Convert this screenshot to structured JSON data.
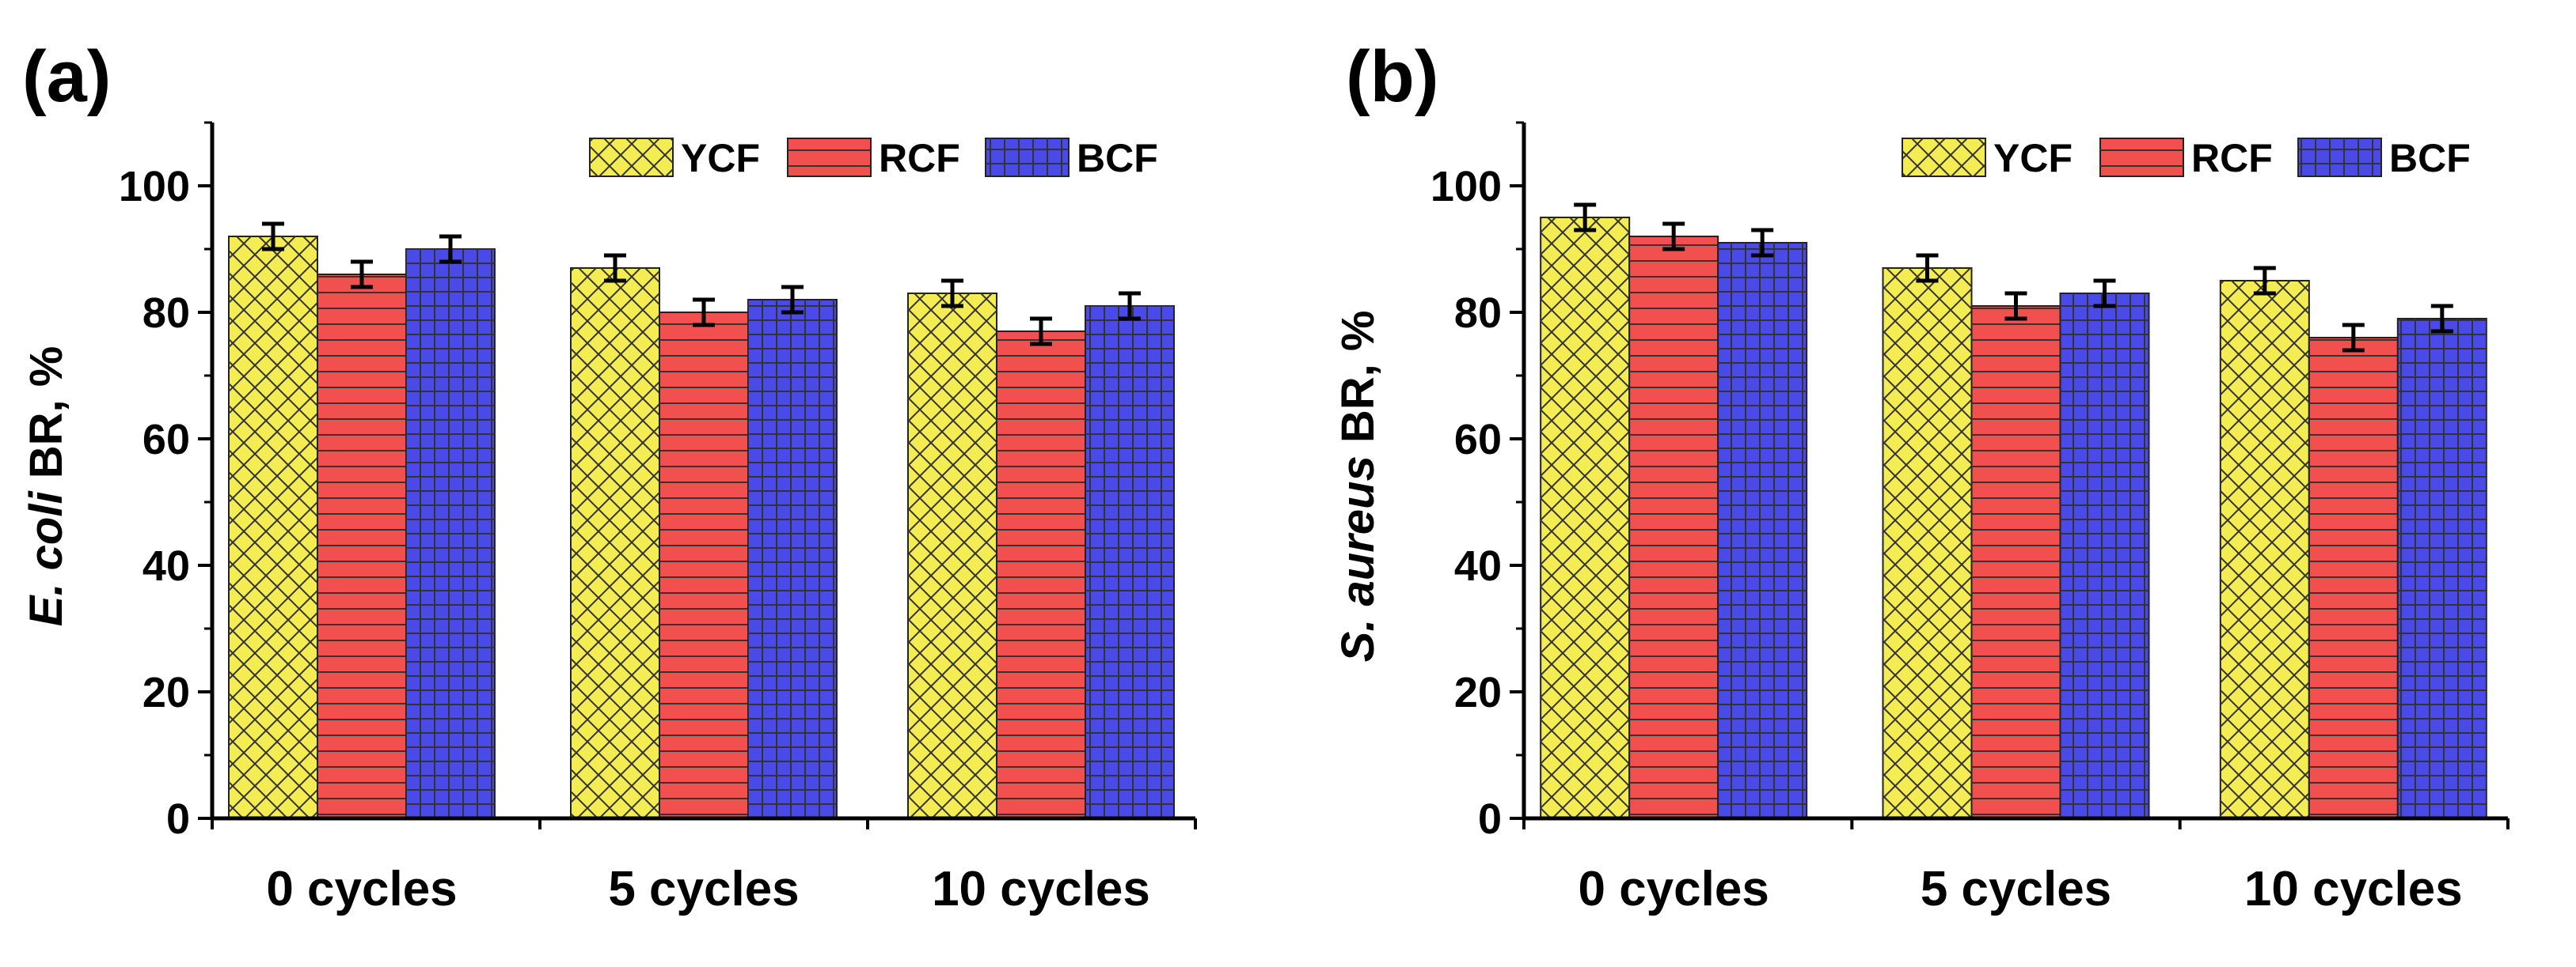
{
  "chart_data": [
    {
      "panel_label": "(a)",
      "type": "bar",
      "categories": [
        "0 cycles",
        "5 cycles",
        "10 cycles"
      ],
      "series": [
        {
          "name": "YCF",
          "values": [
            92,
            87,
            83
          ],
          "errors": [
            2,
            2,
            2
          ],
          "color": "#f4ec53",
          "pattern": "crosshatch"
        },
        {
          "name": "RCF",
          "values": [
            86,
            80,
            77
          ],
          "errors": [
            2,
            2,
            2
          ],
          "color": "#f2504f",
          "pattern": "horizontal"
        },
        {
          "name": "BCF",
          "values": [
            90,
            82,
            81
          ],
          "errors": [
            2,
            2,
            2
          ],
          "color": "#4a4ae8",
          "pattern": "grid"
        }
      ],
      "ylabel_italic": "E. coli",
      "ylabel_rest": " BR, %",
      "ylim": [
        0,
        110
      ],
      "yticks": [
        0,
        20,
        40,
        60,
        80,
        100
      ],
      "legend_position": "top-right"
    },
    {
      "panel_label": "(b)",
      "type": "bar",
      "categories": [
        "0 cycles",
        "5 cycles",
        "10 cycles"
      ],
      "series": [
        {
          "name": "YCF",
          "values": [
            95,
            87,
            85
          ],
          "errors": [
            2,
            2,
            2
          ],
          "color": "#f4ec53",
          "pattern": "crosshatch"
        },
        {
          "name": "RCF",
          "values": [
            92,
            81,
            76
          ],
          "errors": [
            2,
            2,
            2
          ],
          "color": "#f2504f",
          "pattern": "horizontal"
        },
        {
          "name": "BCF",
          "values": [
            91,
            83,
            79
          ],
          "errors": [
            2,
            2,
            2
          ],
          "color": "#4a4ae8",
          "pattern": "grid"
        }
      ],
      "ylabel_italic": "S. aureus",
      "ylabel_rest": " BR, %",
      "ylim": [
        0,
        110
      ],
      "yticks": [
        0,
        20,
        40,
        60,
        80,
        100
      ],
      "legend_position": "top-right"
    }
  ]
}
